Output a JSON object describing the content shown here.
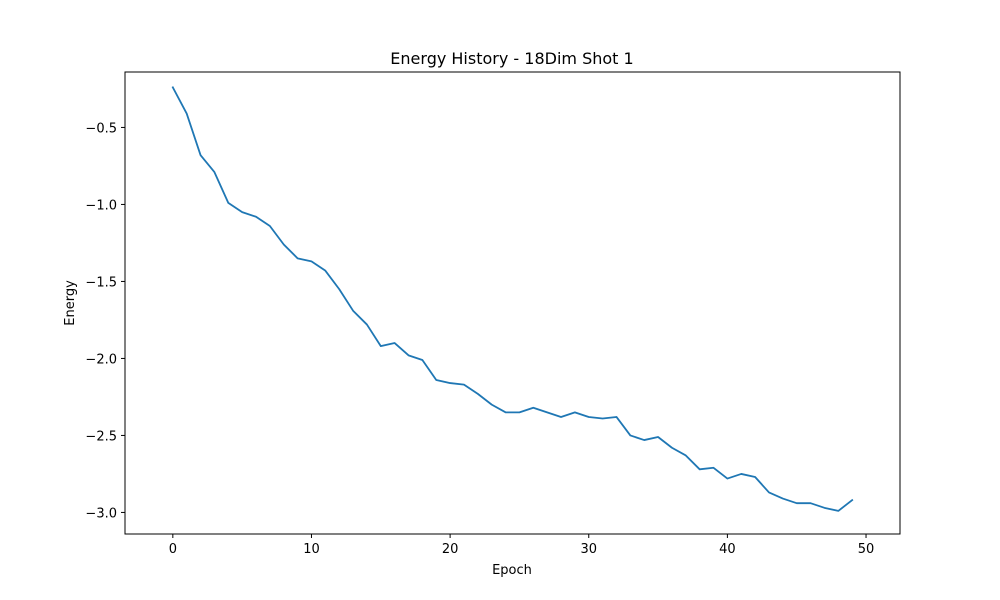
{
  "chart_data": {
    "type": "line",
    "title": "Energy History - 18Dim Shot 1",
    "xlabel": "Epoch",
    "ylabel": "Energy",
    "xlim": [
      -3.45,
      52.45
    ],
    "ylim": [
      -3.14,
      -0.14
    ],
    "xticks": [
      0,
      10,
      20,
      30,
      40,
      50
    ],
    "xtick_labels": [
      "0",
      "10",
      "20",
      "30",
      "40",
      "50"
    ],
    "yticks": [
      -0.5,
      -1.0,
      -1.5,
      -2.0,
      -2.5,
      -3.0
    ],
    "ytick_labels": [
      "−0.5",
      "−1.0",
      "−1.5",
      "−2.0",
      "−2.5",
      "−3.0"
    ],
    "grid": false,
    "series": [
      {
        "color": "#1f77b4",
        "x": [
          0,
          1,
          2,
          3,
          4,
          5,
          6,
          7,
          8,
          9,
          10,
          11,
          12,
          13,
          14,
          15,
          16,
          17,
          18,
          19,
          20,
          21,
          22,
          23,
          24,
          25,
          26,
          27,
          28,
          29,
          30,
          31,
          32,
          33,
          34,
          35,
          36,
          37,
          38,
          39,
          40,
          41,
          42,
          43,
          44,
          45,
          46,
          47,
          48,
          49
        ],
        "values": [
          -0.24,
          -0.41,
          -0.68,
          -0.79,
          -0.99,
          -1.05,
          -1.08,
          -1.14,
          -1.26,
          -1.35,
          -1.37,
          -1.43,
          -1.55,
          -1.69,
          -1.78,
          -1.92,
          -1.9,
          -1.98,
          -2.01,
          -2.14,
          -2.16,
          -2.17,
          -2.23,
          -2.3,
          -2.35,
          -2.35,
          -2.32,
          -2.35,
          -2.38,
          -2.35,
          -2.38,
          -2.39,
          -2.38,
          -2.5,
          -2.53,
          -2.51,
          -2.58,
          -2.63,
          -2.72,
          -2.71,
          -2.78,
          -2.75,
          -2.77,
          -2.87,
          -2.91,
          -2.94,
          -2.94,
          -2.97,
          -2.99,
          -2.92
        ]
      }
    ]
  }
}
